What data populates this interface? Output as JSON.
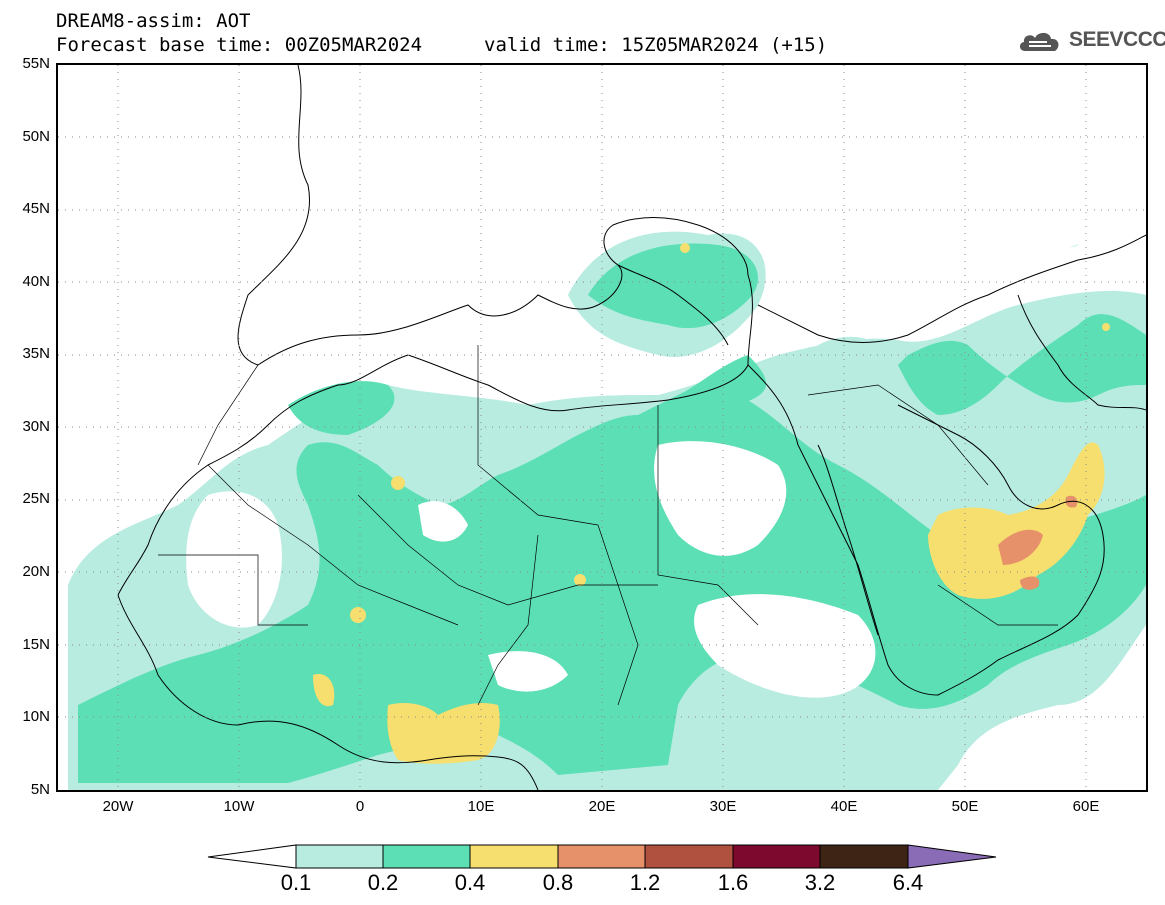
{
  "header": {
    "title": "DREAM8-assim: AOT",
    "forecast_base": "Forecast base time: 00Z05MAR2024",
    "valid_time": "valid time: 15Z05MAR2024 (+15)"
  },
  "logo": {
    "text": "SEEVCCC",
    "icon": "cloud-icon"
  },
  "map": {
    "lat_labels": [
      "55N",
      "50N",
      "45N",
      "40N",
      "35N",
      "30N",
      "25N",
      "20N",
      "15N",
      "10N",
      "5N"
    ],
    "lon_labels": [
      "20W",
      "10W",
      "0",
      "10E",
      "20E",
      "30E",
      "40E",
      "50E",
      "60E"
    ],
    "lat_range": [
      5,
      55
    ],
    "lon_range": [
      -25,
      65
    ]
  },
  "colorbar": {
    "labels": [
      "0.1",
      "0.2",
      "0.4",
      "0.8",
      "1.2",
      "1.6",
      "3.2",
      "6.4"
    ],
    "colors": [
      "#b8ece1",
      "#5cdfb4",
      "#f6df6e",
      "#e6916a",
      "#b0503e",
      "#7d0a2e",
      "#3d2414",
      "#8a6bb5"
    ]
  }
}
